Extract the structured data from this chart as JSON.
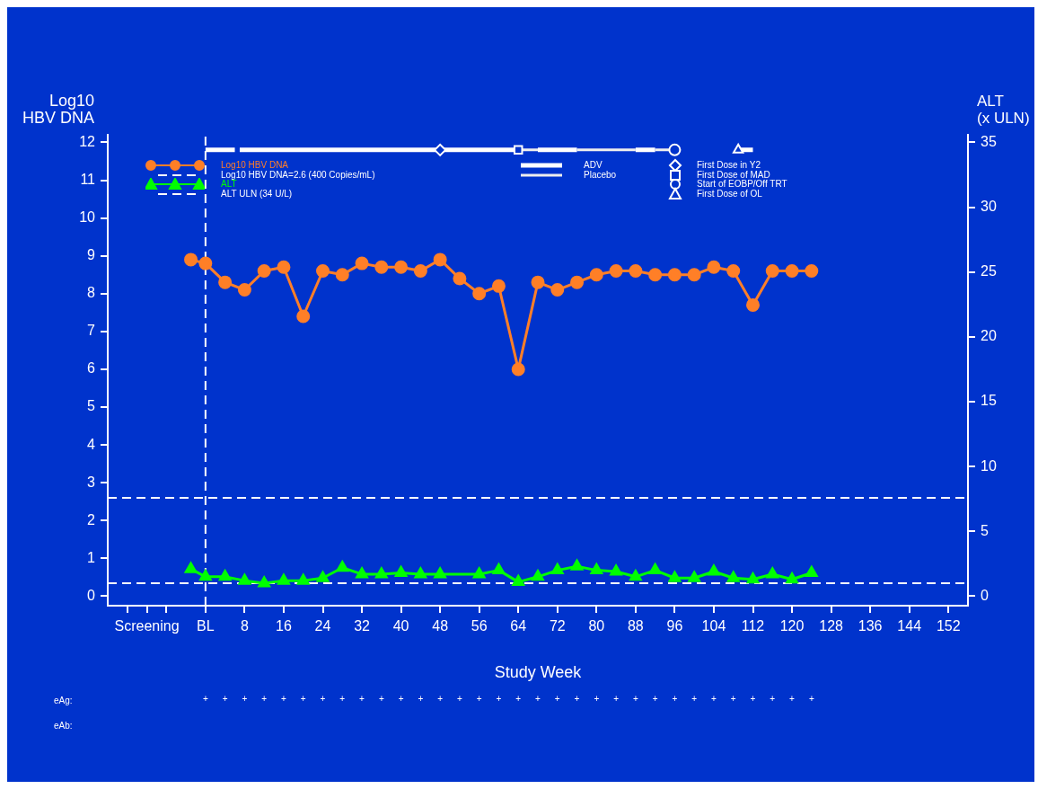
{
  "chart_data": {
    "type": "line",
    "xlabel": "Study Week",
    "ylabel": "Log10\nHBV DNA",
    "y2label": "ALT\n(x ULN)",
    "xlim": [
      -20,
      156
    ],
    "ylim": [
      -0.25,
      12.2
    ],
    "y2lim": [
      -0.73,
      35.58
    ],
    "xticks": [
      {
        "value": -16,
        "label": null
      },
      {
        "value": -12,
        "label": "Screening"
      },
      {
        "value": -8,
        "label": null
      },
      {
        "value": 0,
        "label": "BL"
      },
      8,
      16,
      24,
      32,
      40,
      48,
      56,
      64,
      72,
      80,
      88,
      96,
      104,
      112,
      120,
      128,
      136,
      144,
      152
    ],
    "yticks": [
      0,
      1,
      2,
      3,
      4,
      5,
      6,
      7,
      8,
      9,
      10,
      11,
      12
    ],
    "y2ticks": [
      0,
      5,
      10,
      15,
      20,
      25,
      30,
      35
    ],
    "legend": "top left",
    "series": [
      {
        "name": "Log10 HBV DNA",
        "type": "line",
        "marker": "circle",
        "color": "#ff7f27",
        "x": [
          -3,
          0,
          4,
          8,
          12,
          16,
          20,
          24,
          28,
          32,
          36,
          40,
          44,
          48,
          52,
          56,
          60,
          64,
          68,
          72,
          76,
          80,
          84,
          88,
          92,
          96,
          100,
          104,
          108,
          112,
          116,
          120,
          124
        ],
        "values": [
          8.9,
          8.8,
          8.3,
          8.1,
          8.6,
          8.7,
          7.4,
          8.6,
          8.5,
          8.8,
          8.7,
          8.7,
          8.6,
          8.9,
          8.4,
          8.0,
          8.2,
          6.0,
          8.3,
          8.1,
          8.3,
          8.5,
          8.6,
          8.6,
          8.5,
          8.5,
          8.5,
          8.7,
          8.6,
          7.7,
          8.6,
          8.6,
          8.6
        ]
      },
      {
        "name": "ALT",
        "type": "line",
        "marker": "triangle",
        "color": "#00ff00",
        "axis": "y2",
        "x": [
          -3,
          0,
          4,
          8,
          12,
          16,
          20,
          24,
          28,
          32,
          36,
          40,
          44,
          48,
          56,
          60,
          64,
          68,
          72,
          76,
          80,
          84,
          88,
          92,
          96,
          100,
          104,
          108,
          112,
          116,
          120,
          124
        ],
        "values": [
          2.1,
          1.5,
          1.5,
          1.2,
          1.0,
          1.2,
          1.2,
          1.4,
          2.2,
          1.7,
          1.7,
          1.8,
          1.7,
          1.7,
          1.7,
          2.0,
          1.1,
          1.5,
          2.0,
          2.3,
          2.0,
          1.9,
          1.5,
          2.0,
          1.4,
          1.4,
          1.9,
          1.4,
          1.3,
          1.7,
          1.3,
          1.8
        ]
      },
      {
        "name": "ADV",
        "type": "line",
        "marker": "none",
        "color": "#ffffff",
        "x": [
          0,
          6,
          6.5,
          7,
          64,
          66,
          68,
          76,
          82,
          88,
          92,
          100,
          109,
          112
        ],
        "values": [
          11.8,
          11.8,
          null,
          11.8,
          11.8,
          null,
          11.8,
          11.8,
          null,
          11.8,
          11.8,
          null,
          11.8,
          11.8
        ]
      },
      {
        "name": "Placebo",
        "type": "line",
        "marker": "none",
        "color": "#eeeeee",
        "x": [
          64,
          68,
          72,
          76,
          88,
          90,
          92,
          96
        ],
        "values": [
          11.8,
          11.8,
          null,
          11.8,
          11.8,
          null,
          11.8,
          11.8
        ]
      },
      {
        "name": "First Dose in Y2",
        "type": "scatter",
        "marker": "diamond",
        "color": "#ffffff",
        "x": [
          48
        ],
        "values": [
          11.8
        ]
      },
      {
        "name": "First Dose of MAD",
        "type": "scatter",
        "marker": "square",
        "color": "#ffffff",
        "x": [
          64
        ],
        "values": [
          11.8
        ]
      },
      {
        "name": "Start of EOBP/Off TRT",
        "type": "scatter",
        "marker": "circle",
        "color": "#ffffff",
        "x": [
          96
        ],
        "values": [
          11.8
        ]
      },
      {
        "name": "First Dose of OL",
        "type": "scatter",
        "marker": "triangle",
        "color": "#ffffff",
        "x": [
          109
        ],
        "values": [
          11.8
        ]
      }
    ],
    "ref_lines": [
      {
        "axis": "y",
        "value": 2.6,
        "label": "Log10 HBV DNA=2.6 (400 Copies/mL)",
        "color": "#ffffff",
        "line_style": "dashed"
      },
      {
        "axis": "y2",
        "value": 1,
        "label": "ALT ULN (34 U/L)",
        "color": "#ffffff",
        "line_style": "dashed"
      },
      {
        "axis": "x",
        "value": 0,
        "color": "#ffffff",
        "line_style": "dashed"
      }
    ],
    "annotations": [
      "eAg:",
      "eAb:",
      "+",
      "+",
      "+",
      "+",
      "+",
      "+",
      "+",
      "+",
      "+",
      "+",
      "+",
      "+",
      "+",
      "+",
      "+",
      "+",
      "+",
      "+",
      "+",
      "+",
      "+",
      "+",
      "+",
      "+",
      "+",
      "+",
      "+",
      "+",
      "+",
      "+",
      "+",
      "+"
    ]
  }
}
